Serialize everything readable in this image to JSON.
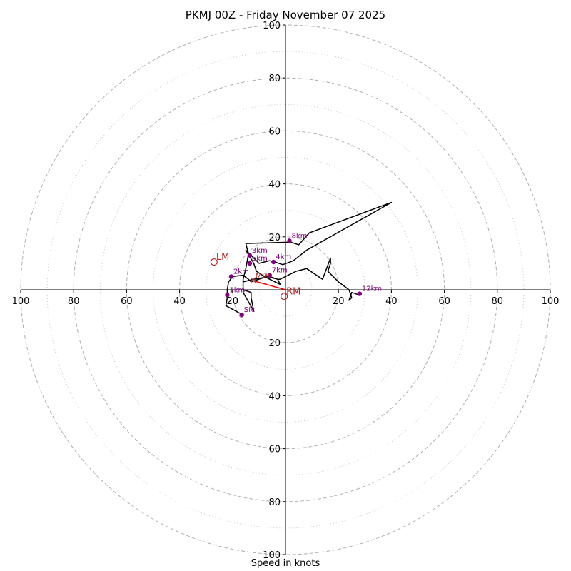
{
  "chart_data": {
    "type": "hodograph",
    "title": "PKMJ 00Z - Friday November 07 2025",
    "xlabel": "Speed in knots",
    "speed_max": 100,
    "ring_major": [
      20,
      40,
      60,
      80,
      100
    ],
    "ring_minor": [
      10,
      30,
      50,
      70,
      90
    ],
    "tick_labels": {
      "x": [
        "100",
        "80",
        "60",
        "40",
        "20",
        "20",
        "40",
        "60",
        "80",
        "100"
      ],
      "y": [
        "100",
        "80",
        "60",
        "40",
        "20",
        "20",
        "40",
        "60",
        "80",
        "100"
      ]
    },
    "colors": {
      "trace": "#000000",
      "levels": "#800080",
      "motion": "#b22222",
      "mean_wind": "#ff0000",
      "grid": "#b0b0b0"
    },
    "trace": [
      [
        -17,
        -9
      ],
      [
        -22.5,
        -6
      ],
      [
        -22,
        -3
      ],
      [
        -22,
        0
      ],
      [
        -21.5,
        3
      ],
      [
        -20,
        5
      ],
      [
        -16,
        5.5
      ],
      [
        -14,
        4
      ],
      [
        -13,
        3
      ],
      [
        -10,
        4
      ],
      [
        -7,
        5
      ],
      [
        -3,
        4
      ],
      [
        -2,
        2
      ],
      [
        -8,
        5
      ],
      [
        -11,
        7
      ],
      [
        -12,
        10
      ],
      [
        -15,
        15
      ],
      [
        -12,
        12
      ],
      [
        -10,
        10
      ],
      [
        -6,
        11
      ],
      [
        -4,
        10.5
      ],
      [
        -1,
        9.5
      ],
      [
        3,
        11
      ],
      [
        8,
        15
      ],
      [
        40,
        33
      ],
      [
        9,
        21.5
      ],
      [
        5,
        17
      ],
      [
        2,
        18
      ],
      [
        -15,
        17.5
      ],
      [
        -14,
        13.5
      ],
      [
        -15,
        8
      ],
      [
        -16,
        4
      ],
      [
        -16,
        0
      ],
      [
        -13,
        -1
      ],
      [
        -13,
        -3
      ],
      [
        -12,
        -8
      ],
      [
        -16,
        -1
      ],
      [
        -16,
        3
      ],
      [
        -12,
        4
      ],
      [
        -6,
        5
      ],
      [
        -3,
        4
      ],
      [
        -2,
        4
      ],
      [
        4,
        7
      ],
      [
        8,
        8
      ],
      [
        14,
        4
      ],
      [
        17,
        12
      ],
      [
        17,
        10
      ],
      [
        16,
        7
      ],
      [
        20,
        3
      ],
      [
        24,
        0
      ],
      [
        25,
        -3
      ],
      [
        24,
        -4
      ],
      [
        25,
        -1
      ],
      [
        28,
        -2
      ]
    ],
    "levels": [
      {
        "label": "Sfc",
        "u": -16.5,
        "v": -9.5
      },
      {
        "label": "1km",
        "u": -22,
        "v": -2
      },
      {
        "label": "2km",
        "u": -20.5,
        "v": 5
      },
      {
        "label": "3km",
        "u": -13.5,
        "v": 13
      },
      {
        "label": "4km",
        "u": -4.5,
        "v": 10.5
      },
      {
        "label": "6km",
        "u": -13.5,
        "v": 10
      },
      {
        "label": "7km",
        "u": -6,
        "v": 5.5
      },
      {
        "label": "8km",
        "u": 1.5,
        "v": 18.5
      },
      {
        "label": "12km",
        "u": 28,
        "v": -1.5
      }
    ],
    "storm_motion": {
      "rm": {
        "label": "RM",
        "u": -0.5,
        "v": -2.5
      },
      "lm": {
        "label": "LM",
        "u": -27,
        "v": 10.5
      },
      "mean_wind": {
        "label": "MW",
        "u": -12.5,
        "v": 3.5
      }
    },
    "mean_wind_vector": {
      "from_u": 0,
      "from_v": 0,
      "to_u": -12.5,
      "to_v": 3.5
    }
  }
}
